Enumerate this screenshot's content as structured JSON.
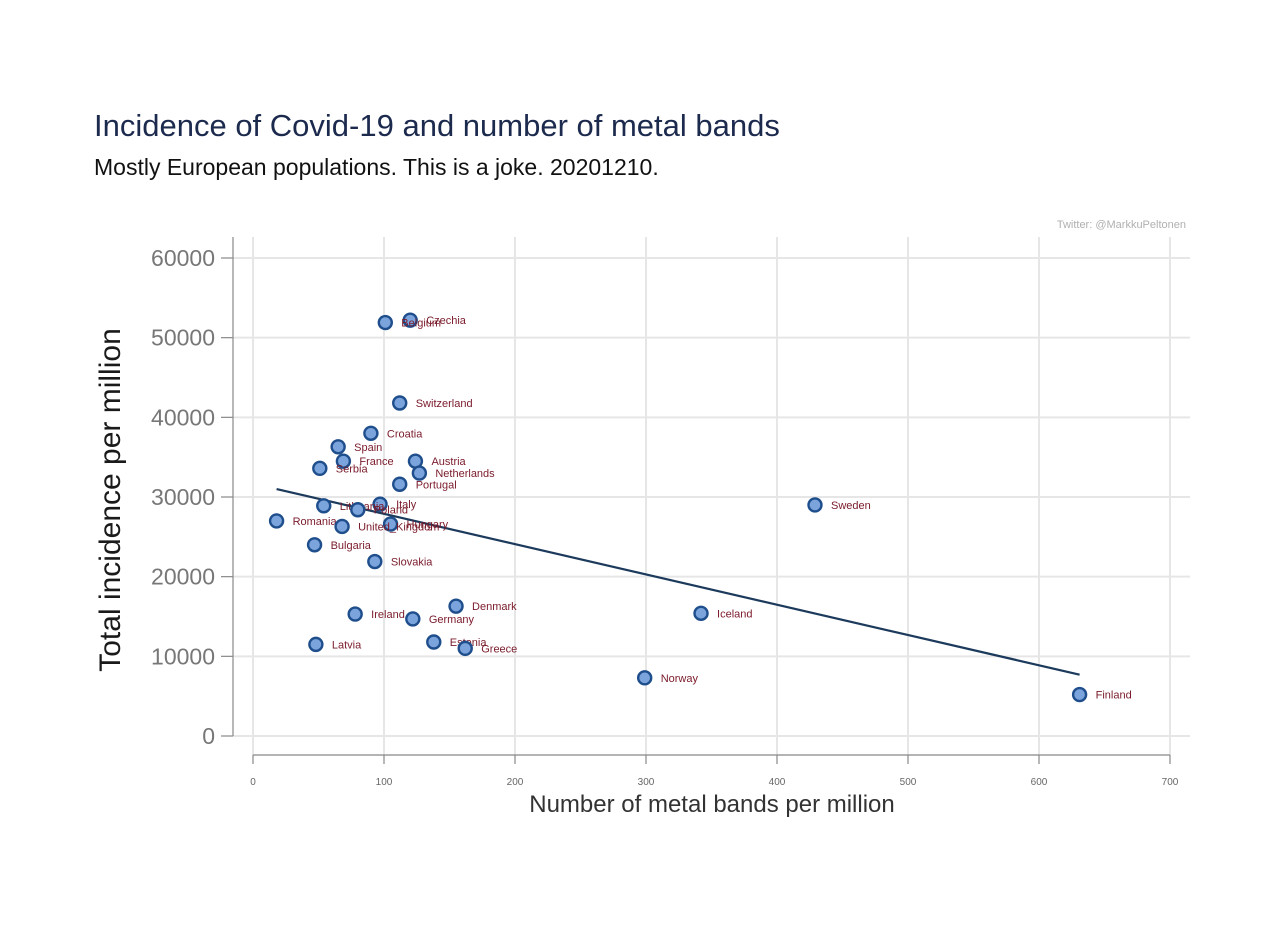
{
  "title": "Incidence of Covid-19 and number of metal bands",
  "subtitle": "Mostly European populations. This is a joke. 20201210.",
  "credit": "Twitter: @MarkkuPeltonen",
  "colors": {
    "marker_fill": "#7ba3dc",
    "marker_stroke": "#1f4e8c",
    "label": "#7a1a2a",
    "fit_line": "#1c3a5c",
    "grid": "#e6e6e6"
  },
  "chart_data": {
    "type": "scatter",
    "title": "Incidence of Covid-19 and number of metal bands",
    "subtitle": "Mostly European populations. This is a joke. 20201210.",
    "xlabel": "Number of metal bands per million",
    "ylabel": "Total incidence per million",
    "xlim": [
      0,
      700
    ],
    "ylim": [
      0,
      60000
    ],
    "xticks": [
      0,
      100,
      200,
      300,
      400,
      500,
      600,
      700
    ],
    "yticks": [
      0,
      10000,
      20000,
      30000,
      40000,
      50000,
      60000
    ],
    "grid": true,
    "points": [
      {
        "label": "Czechia",
        "x": 120,
        "y": 52200
      },
      {
        "label": "Belgium",
        "x": 101,
        "y": 51900
      },
      {
        "label": "Switzerland",
        "x": 112,
        "y": 41800
      },
      {
        "label": "Croatia",
        "x": 90,
        "y": 38000
      },
      {
        "label": "Spain",
        "x": 65,
        "y": 36300
      },
      {
        "label": "France",
        "x": 69,
        "y": 34500
      },
      {
        "label": "Austria",
        "x": 124,
        "y": 34500
      },
      {
        "label": "Serbia",
        "x": 51,
        "y": 33600
      },
      {
        "label": "Netherlands",
        "x": 127,
        "y": 33000
      },
      {
        "label": "Portugal",
        "x": 112,
        "y": 31600
      },
      {
        "label": "Italy",
        "x": 97,
        "y": 29100
      },
      {
        "label": "Lithuania",
        "x": 54,
        "y": 28900
      },
      {
        "label": "Poland",
        "x": 80,
        "y": 28400
      },
      {
        "label": "Sweden",
        "x": 429,
        "y": 29000
      },
      {
        "label": "Romania",
        "x": 18,
        "y": 27000
      },
      {
        "label": "Hungary",
        "x": 105,
        "y": 26600
      },
      {
        "label": "United_Kingdom",
        "x": 68,
        "y": 26300
      },
      {
        "label": "Bulgaria",
        "x": 47,
        "y": 24000
      },
      {
        "label": "Slovakia",
        "x": 93,
        "y": 21900
      },
      {
        "label": "Denmark",
        "x": 155,
        "y": 16300
      },
      {
        "label": "Iceland",
        "x": 342,
        "y": 15400
      },
      {
        "label": "Ireland",
        "x": 78,
        "y": 15300
      },
      {
        "label": "Germany",
        "x": 122,
        "y": 14700
      },
      {
        "label": "Estonia",
        "x": 138,
        "y": 11800
      },
      {
        "label": "Latvia",
        "x": 48,
        "y": 11500
      },
      {
        "label": "Greece",
        "x": 162,
        "y": 11000
      },
      {
        "label": "Norway",
        "x": 299,
        "y": 7300
      },
      {
        "label": "Finland",
        "x": 631,
        "y": 5200
      }
    ],
    "fit_line": {
      "x": [
        18,
        631
      ],
      "y": [
        31000,
        7700
      ]
    }
  }
}
